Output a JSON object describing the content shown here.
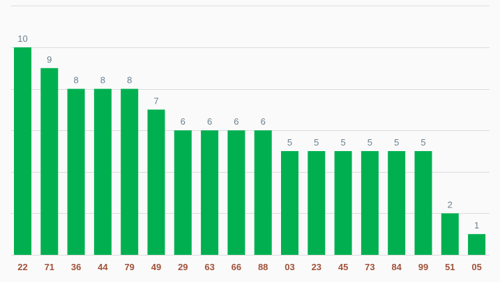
{
  "chart_data": {
    "type": "bar",
    "categories": [
      "22",
      "71",
      "36",
      "44",
      "79",
      "49",
      "29",
      "63",
      "66",
      "88",
      "03",
      "23",
      "45",
      "73",
      "84",
      "99",
      "51",
      "05"
    ],
    "values": [
      10,
      9,
      8,
      8,
      8,
      7,
      6,
      6,
      6,
      6,
      5,
      5,
      5,
      5,
      5,
      5,
      2,
      1
    ],
    "ylim": [
      0,
      12
    ],
    "grid": true,
    "show_value_labels": true,
    "bar_color": "#00b050",
    "value_label_color": "#6b7f8e",
    "category_label_color": "#a0523a",
    "grid_color": "#dcdcdc"
  }
}
